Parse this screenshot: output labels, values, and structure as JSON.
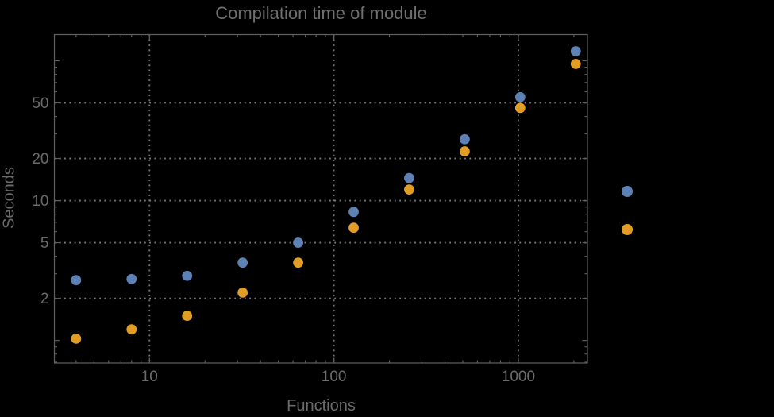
{
  "chart_data": {
    "type": "scatter",
    "title": "Compilation time of module",
    "xlabel": "Functions",
    "ylabel": "Seconds",
    "x_scale": "log",
    "y_scale": "log",
    "xlim": [
      3.05,
      2370
    ],
    "ylim": [
      0.69,
      154
    ],
    "grid": "dotted-major",
    "legend_position": "right-outside",
    "x": [
      4,
      8,
      16,
      32,
      64,
      128,
      256,
      512,
      1024,
      2048
    ],
    "series": [
      {
        "name": "series-1-blue",
        "color": "#5e81b5",
        "values": [
          2.7,
          2.75,
          2.9,
          3.6,
          5.0,
          8.3,
          14.5,
          27.5,
          55,
          117
        ]
      },
      {
        "name": "series-2-orange",
        "color": "#e29e24",
        "values": [
          1.03,
          1.2,
          1.5,
          2.2,
          3.6,
          6.4,
          12,
          22.5,
          46,
          95
        ]
      }
    ],
    "x_gridlines": [
      10,
      100,
      1000
    ],
    "y_gridlines": [
      2,
      5,
      10,
      20,
      50
    ],
    "x_tick_labels": [
      "10",
      "100",
      "1000"
    ],
    "y_tick_labels": [
      "2",
      "5",
      "10",
      "20",
      "50"
    ],
    "legend": {
      "markers": [
        {
          "name": "legend-marker-series-1",
          "series": 0,
          "label": ""
        },
        {
          "name": "legend-marker-series-2",
          "series": 1,
          "label": ""
        }
      ],
      "labels_visible": false
    },
    "colors": {
      "background": "#000000",
      "frame": "#606060",
      "gridline": "#7c7c7c",
      "text": "#6c6c6c",
      "title_text": "#6f6f6f"
    }
  }
}
